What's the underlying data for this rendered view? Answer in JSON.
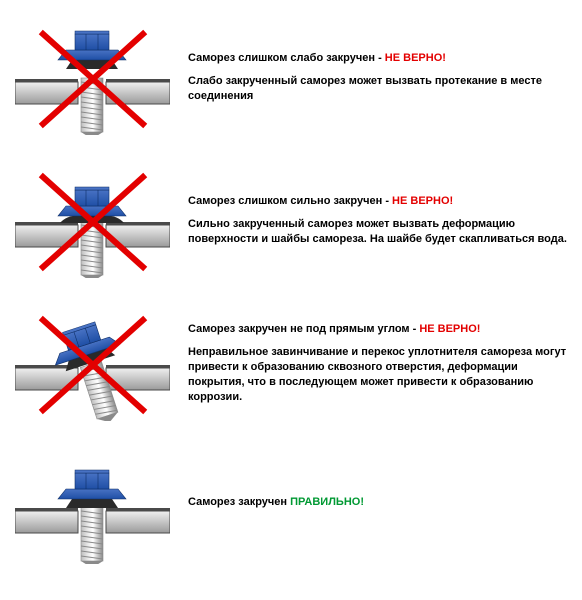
{
  "colors": {
    "screw_head": "#1f4fa5",
    "screw_head_hi": "#4872c4",
    "washer": "#2a2a2a",
    "shaft_light": "#e8e8e8",
    "shaft_mid": "#bcbcbc",
    "shaft_dark": "#8a8a8a",
    "surface_light": "#f0f0f0",
    "surface_dark": "#9a9a9a",
    "surface_edge": "#4a4a4a",
    "cross": "#e30000",
    "text_bad": "#e30000",
    "text_good": "#009933"
  },
  "font": {
    "desc_size": 11,
    "weight": "bold"
  },
  "items": [
    {
      "kind": "loose",
      "title_prefix": "Саморез слишком слабо закручен - ",
      "status_text": "НЕ ВЕРНО!",
      "status_class": "status-bad",
      "cross": true,
      "desc": "Слабо закрученный саморез может вызвать протекание в месте соединения"
    },
    {
      "kind": "overtight",
      "title_prefix": "Саморез слишком сильно закручен - ",
      "status_text": "НЕ ВЕРНО!",
      "status_class": "status-bad",
      "cross": true,
      "desc": "Сильно закрученный саморез может вызвать деформацию поверхности и шайбы самореза. На шайбе будет скапливаться вода."
    },
    {
      "kind": "angled",
      "title_prefix": "Саморез закручен не под прямым углом - ",
      "status_text": "НЕ ВЕРНО!",
      "status_class": "status-bad",
      "cross": true,
      "desc": "Неправильное завинчивание и перекос уплотнителя самореза могут привести к образованию сквозного отверстия, деформации покрытия, что в последующем может привести к образованию коррозии."
    },
    {
      "kind": "correct",
      "title_prefix": "Саморез закручен ",
      "status_text": "ПРАВИЛЬНО!",
      "status_class": "status-good",
      "cross": false,
      "desc": ""
    }
  ]
}
